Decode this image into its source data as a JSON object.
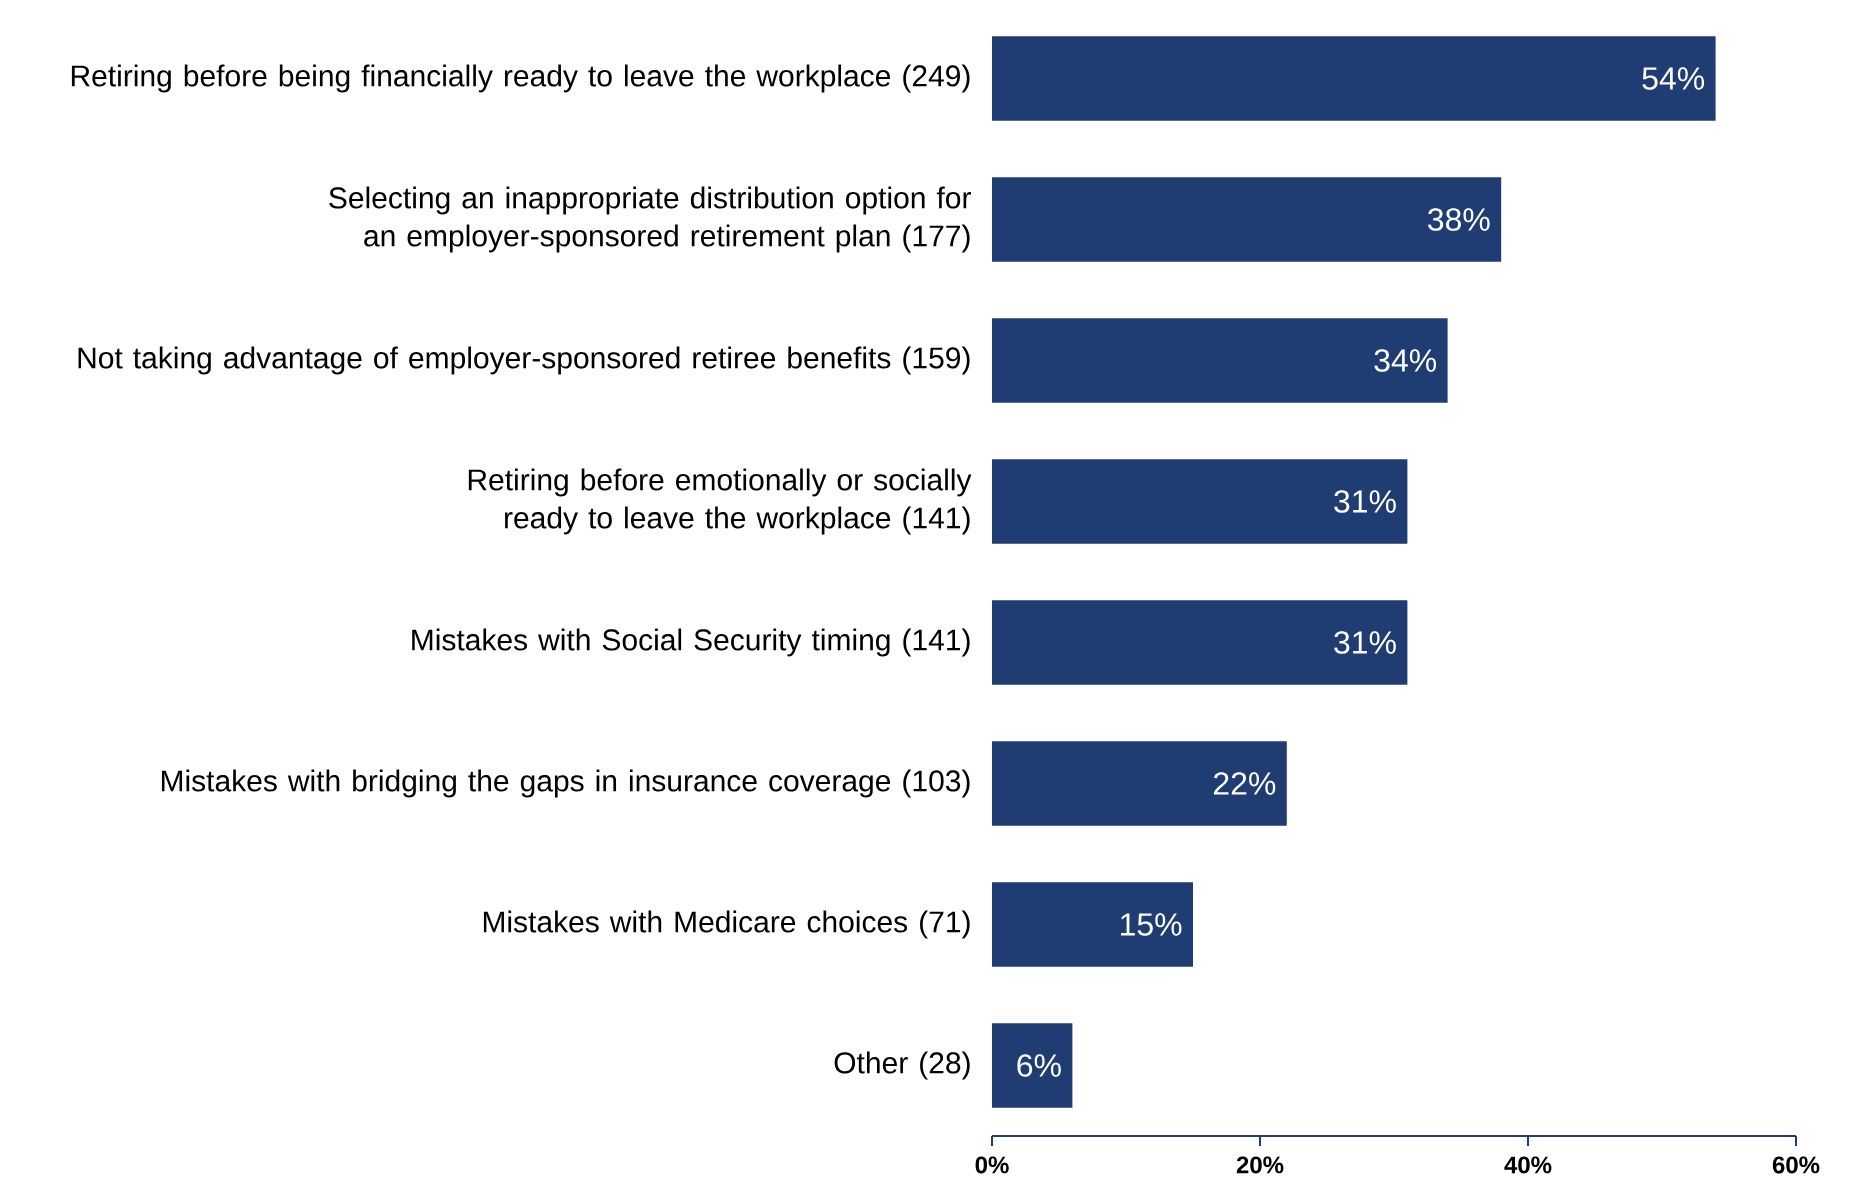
{
  "chart_data": {
    "type": "bar",
    "orientation": "horizontal",
    "categories": [
      "Retiring before being financially ready to leave the workplace (249)",
      "Selecting an inappropriate distribution option for an employer-sponsored retirement plan (177)",
      "Not taking advantage of employer-sponsored retiree benefits (159)",
      "Retiring before emotionally or socially ready to leave the workplace (141)",
      "Mistakes with Social Security timing (141)",
      "Mistakes with bridging the gaps in insurance coverage (103)",
      "Mistakes with Medicare choices (71)",
      "Other (28)"
    ],
    "values": [
      54,
      38,
      34,
      31,
      31,
      22,
      15,
      6
    ],
    "value_labels": [
      "54%",
      "38%",
      "34%",
      "31%",
      "31%",
      "22%",
      "15%",
      "6%"
    ],
    "color": "#1f3d72",
    "xlim": [
      0,
      60
    ],
    "xticks": [
      {
        "value": 0,
        "label": "0%"
      },
      {
        "value": 20,
        "label": "20%"
      },
      {
        "value": 40,
        "label": "40%"
      },
      {
        "value": 60,
        "label": "60%"
      }
    ]
  }
}
